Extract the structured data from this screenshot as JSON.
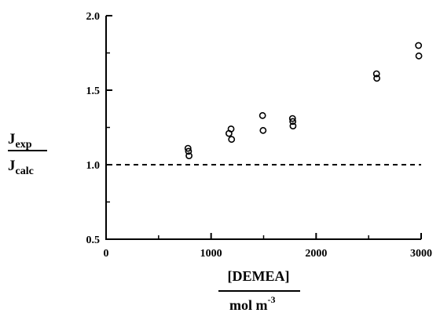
{
  "chart_data": {
    "type": "scatter",
    "xlim": [
      0,
      3000
    ],
    "ylim": [
      0.5,
      2.0
    ],
    "xticks": [
      "0",
      "1000",
      "2000",
      "3000"
    ],
    "yticks": [
      "0.5",
      "1.0",
      "1.5",
      "2.0"
    ],
    "ylabel": {
      "numerator_main": "J",
      "numerator_sub": "exp",
      "denominator_main": "J",
      "denominator_sub": "calc"
    },
    "xlabel": {
      "numerator": "[DEMEA]",
      "denominator_main": "mol m",
      "denominator_sup": "-3"
    },
    "reference_line": {
      "y": 1.0,
      "style": "dashed"
    },
    "grid": false,
    "marker": "open-circle",
    "series": [
      {
        "points": [
          {
            "x": 780,
            "y": 1.11
          },
          {
            "x": 785,
            "y": 1.09
          },
          {
            "x": 790,
            "y": 1.06
          },
          {
            "x": 1170,
            "y": 1.21
          },
          {
            "x": 1190,
            "y": 1.24
          },
          {
            "x": 1195,
            "y": 1.17
          },
          {
            "x": 1490,
            "y": 1.33
          },
          {
            "x": 1495,
            "y": 1.23
          },
          {
            "x": 1775,
            "y": 1.31
          },
          {
            "x": 1778,
            "y": 1.29
          },
          {
            "x": 1780,
            "y": 1.26
          },
          {
            "x": 2575,
            "y": 1.61
          },
          {
            "x": 2578,
            "y": 1.58
          },
          {
            "x": 2975,
            "y": 1.8
          },
          {
            "x": 2978,
            "y": 1.73
          }
        ]
      }
    ]
  }
}
